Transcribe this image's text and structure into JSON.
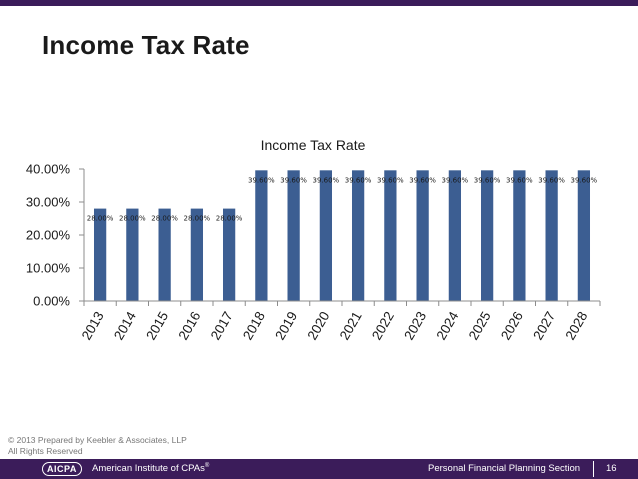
{
  "slide": {
    "title": "Income Tax Rate",
    "copyright_line1": "© 2013 Prepared by Keebler & Associates, LLP",
    "copyright_line2": "All Rights Reserved"
  },
  "footer": {
    "logo_text": "AICPA",
    "organization": "American Institute of CPAs",
    "registered_mark": "®",
    "section": "Personal Financial Planning Section",
    "page_number": "16"
  },
  "colors": {
    "bar": "#3c5e92",
    "band": "#3b1c5a",
    "axis": "#8c8c8c"
  },
  "chart_data": {
    "type": "bar",
    "title": "Income Tax Rate",
    "categories": [
      "2013",
      "2014",
      "2015",
      "2016",
      "2017",
      "2018",
      "2019",
      "2020",
      "2021",
      "2022",
      "2023",
      "2024",
      "2025",
      "2026",
      "2027",
      "2028"
    ],
    "values": [
      28,
      28,
      28,
      28,
      28,
      39.6,
      39.6,
      39.6,
      39.6,
      39.6,
      39.6,
      39.6,
      39.6,
      39.6,
      39.6,
      39.6
    ],
    "data_labels": [
      "28.00%",
      "28.00%",
      "28.00%",
      "28.00%",
      "28.00%",
      "39.60%",
      "39.60%",
      "39.60%",
      "39.60%",
      "39.60%",
      "39.60%",
      "39.60%",
      "39.60%",
      "39.60%",
      "39.60%",
      "39.60%"
    ],
    "ylim": [
      0,
      40
    ],
    "yticks": [
      0,
      10,
      20,
      30,
      40
    ],
    "ytick_labels": [
      "0.00%",
      "10.00%",
      "20.00%",
      "30.00%",
      "40.00%"
    ],
    "grid": false,
    "legend": "none"
  }
}
